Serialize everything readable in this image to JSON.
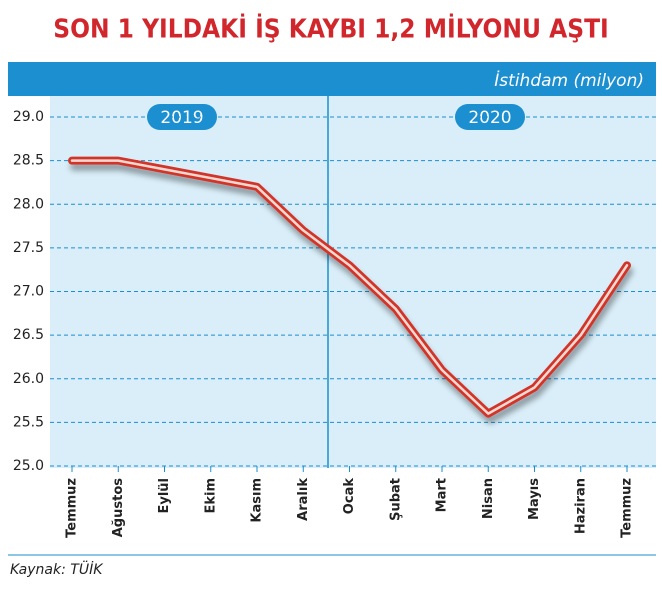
{
  "chart_data": {
    "type": "line",
    "title": "SON 1 YILDAKİ İŞ KAYBI 1,2 MİLYONU AŞTI",
    "y_axis_label": "İstihdam (milyon)",
    "year_labels": [
      "2019",
      "2020"
    ],
    "source": "Kaynak: TÜİK",
    "categories": [
      "Temmuz",
      "Ağustos",
      "Eylül",
      "Ekim",
      "Kasım",
      "Aralık",
      "Ocak",
      "Şubat",
      "Mart",
      "Nisan",
      "Mayıs",
      "Haziran",
      "Temmuz"
    ],
    "values": [
      28.5,
      28.5,
      28.4,
      28.3,
      28.2,
      27.7,
      27.3,
      26.8,
      26.1,
      25.6,
      25.9,
      26.5,
      27.3
    ],
    "color": "#d1362c",
    "ylim": [
      25,
      29
    ],
    "yticks": [
      {
        "value": 25,
        "label": "25.0"
      },
      {
        "value": 25.5,
        "label": "25.5"
      },
      {
        "value": 26,
        "label": "26.0"
      },
      {
        "value": 26.5,
        "label": "26.5"
      },
      {
        "value": 27,
        "label": "27.0"
      },
      {
        "value": 27.5,
        "label": "27.5"
      },
      {
        "value": 28,
        "label": "28.0"
      },
      {
        "value": 28.5,
        "label": "28.5"
      },
      {
        "value": 29,
        "label": "29.0"
      }
    ],
    "grid": true
  }
}
